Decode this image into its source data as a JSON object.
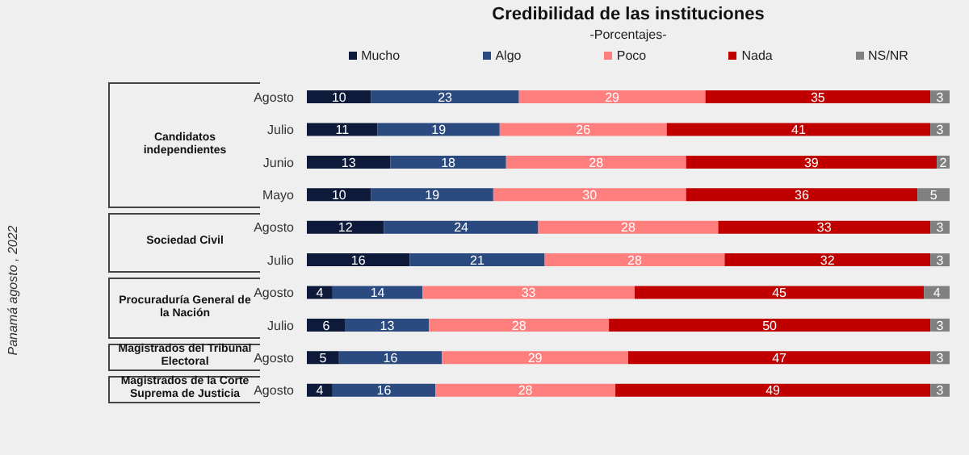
{
  "chart_data": {
    "type": "bar",
    "orientation": "horizontal",
    "stacked": true,
    "title": "Credibilidad de las instituciones",
    "subtitle": "-Porcentajes-",
    "categories": [
      "Agosto",
      "Julio",
      "Junio",
      "Mayo",
      "Agosto",
      "Julio",
      "Agosto",
      "Julio",
      "Agosto",
      "Agosto"
    ],
    "series": [
      {
        "name": "Mucho",
        "color": "#0d1a3a",
        "values": [
          10,
          11,
          13,
          10,
          12,
          16,
          4,
          6,
          5,
          4
        ]
      },
      {
        "name": "Algo",
        "color": "#2a4a80",
        "values": [
          23,
          19,
          18,
          19,
          24,
          21,
          14,
          13,
          16,
          16
        ]
      },
      {
        "name": "Poco",
        "color": "#ff7f7f",
        "values": [
          29,
          26,
          28,
          30,
          28,
          28,
          33,
          28,
          29,
          28
        ]
      },
      {
        "name": "Nada",
        "color": "#c00000",
        "values": [
          35,
          41,
          39,
          36,
          33,
          32,
          45,
          50,
          47,
          49
        ]
      },
      {
        "name": "NS/NR",
        "color": "#808080",
        "values": [
          3,
          3,
          2,
          5,
          3,
          3,
          4,
          3,
          3,
          3
        ]
      }
    ],
    "data_labels": true,
    "legend": "top",
    "grid": false,
    "annotations": [
      "Candidatos independientes",
      "Sociedad Civil",
      "Procuraduría General de la Nación",
      "Magistrados del Tribunal Electoral",
      "Magistrados de la Corte Suprema de Justicia",
      "Panamá agosto , 2022"
    ]
  }
}
